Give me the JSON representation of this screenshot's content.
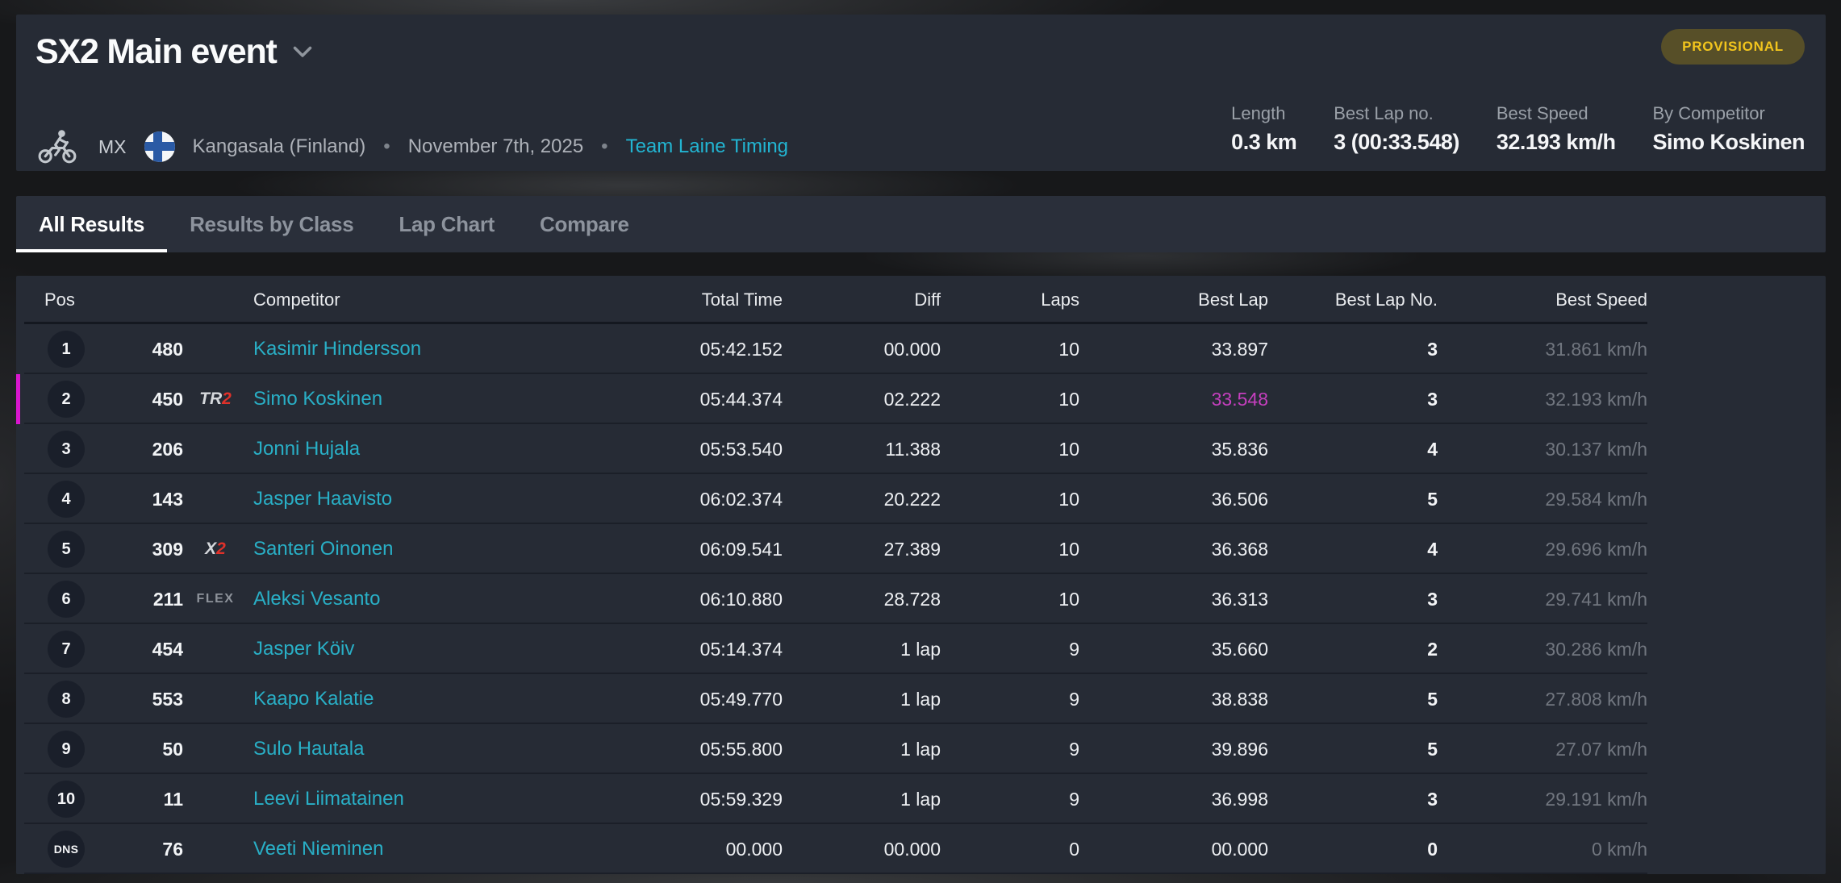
{
  "header": {
    "title": "SX2 Main event",
    "badge": "PROVISIONAL",
    "meta": {
      "sport_icon": "motocross-rider-icon",
      "class_code": "MX",
      "flag_icon": "finland-flag-icon",
      "location": "Kangasala (Finland)",
      "bullet": "•",
      "date": "November 7th, 2025",
      "timing_link": "Team Laine Timing"
    },
    "stats": [
      {
        "label": "Length",
        "value": "0.3 km"
      },
      {
        "label": "Best Lap no.",
        "value": "3 (00:33.548)"
      },
      {
        "label": "Best Speed",
        "value": "32.193 km/h"
      },
      {
        "label": "By Competitor",
        "value": "Simo Koskinen"
      }
    ]
  },
  "tabs": [
    {
      "label": "All Results",
      "active": true
    },
    {
      "label": "Results by Class",
      "active": false
    },
    {
      "label": "Lap Chart",
      "active": false
    },
    {
      "label": "Compare",
      "active": false
    }
  ],
  "table": {
    "columns": [
      "Pos",
      "Competitor",
      "Total Time",
      "Diff",
      "Laps",
      "Best Lap",
      "Best Lap No.",
      "Best Speed"
    ],
    "rows": [
      {
        "pos": "1",
        "number": "480",
        "brand": null,
        "name": "Kasimir Hindersson",
        "total_time": "05:42.152",
        "diff": "00.000",
        "laps": "10",
        "best_lap": "33.897",
        "best_lap_no": "3",
        "best_speed": "31.861 km/h",
        "highlighted": false,
        "fastest_lap": false
      },
      {
        "pos": "2",
        "number": "450",
        "brand": {
          "text": "TR",
          "suffix": "2",
          "style": "racing"
        },
        "name": "Simo Koskinen",
        "total_time": "05:44.374",
        "diff": "02.222",
        "laps": "10",
        "best_lap": "33.548",
        "best_lap_no": "3",
        "best_speed": "32.193 km/h",
        "highlighted": true,
        "fastest_lap": true
      },
      {
        "pos": "3",
        "number": "206",
        "brand": null,
        "name": "Jonni Hujala",
        "total_time": "05:53.540",
        "diff": "11.388",
        "laps": "10",
        "best_lap": "35.836",
        "best_lap_no": "4",
        "best_speed": "30.137 km/h",
        "highlighted": false,
        "fastest_lap": false
      },
      {
        "pos": "4",
        "number": "143",
        "brand": null,
        "name": "Jasper Haavisto",
        "total_time": "06:02.374",
        "diff": "20.222",
        "laps": "10",
        "best_lap": "36.506",
        "best_lap_no": "5",
        "best_speed": "29.584 km/h",
        "highlighted": false,
        "fastest_lap": false
      },
      {
        "pos": "5",
        "number": "309",
        "brand": {
          "text": "X",
          "suffix": "2",
          "style": "racing"
        },
        "name": "Santeri Oinonen",
        "total_time": "06:09.541",
        "diff": "27.389",
        "laps": "10",
        "best_lap": "36.368",
        "best_lap_no": "4",
        "best_speed": "29.696 km/h",
        "highlighted": false,
        "fastest_lap": false
      },
      {
        "pos": "6",
        "number": "211",
        "brand": {
          "text": "FLEX",
          "suffix": "",
          "style": "plain"
        },
        "name": "Aleksi Vesanto",
        "total_time": "06:10.880",
        "diff": "28.728",
        "laps": "10",
        "best_lap": "36.313",
        "best_lap_no": "3",
        "best_speed": "29.741 km/h",
        "highlighted": false,
        "fastest_lap": false
      },
      {
        "pos": "7",
        "number": "454",
        "brand": null,
        "name": "Jasper Köiv",
        "total_time": "05:14.374",
        "diff": "1 lap",
        "laps": "9",
        "best_lap": "35.660",
        "best_lap_no": "2",
        "best_speed": "30.286 km/h",
        "highlighted": false,
        "fastest_lap": false
      },
      {
        "pos": "8",
        "number": "553",
        "brand": null,
        "name": "Kaapo Kalatie",
        "total_time": "05:49.770",
        "diff": "1 lap",
        "laps": "9",
        "best_lap": "38.838",
        "best_lap_no": "5",
        "best_speed": "27.808 km/h",
        "highlighted": false,
        "fastest_lap": false
      },
      {
        "pos": "9",
        "number": "50",
        "brand": null,
        "name": "Sulo Hautala",
        "total_time": "05:55.800",
        "diff": "1 lap",
        "laps": "9",
        "best_lap": "39.896",
        "best_lap_no": "5",
        "best_speed": "27.07 km/h",
        "highlighted": false,
        "fastest_lap": false
      },
      {
        "pos": "10",
        "number": "11",
        "brand": null,
        "name": "Leevi Liimatainen",
        "total_time": "05:59.329",
        "diff": "1 lap",
        "laps": "9",
        "best_lap": "36.998",
        "best_lap_no": "3",
        "best_speed": "29.191 km/h",
        "highlighted": false,
        "fastest_lap": false
      },
      {
        "pos": "DNS",
        "number": "76",
        "brand": null,
        "name": "Veeti Nieminen",
        "total_time": "00.000",
        "diff": "00.000",
        "laps": "0",
        "best_lap": "00.000",
        "best_lap_no": "0",
        "best_speed": "0 km/h",
        "highlighted": false,
        "fastest_lap": false
      }
    ]
  },
  "colors": {
    "accent_teal": "#29afc6",
    "accent_magenta": "#d916ce",
    "badge_yellow": "#f2c51d",
    "brand_red": "#e0312a",
    "panel_bg": "#262b35"
  }
}
